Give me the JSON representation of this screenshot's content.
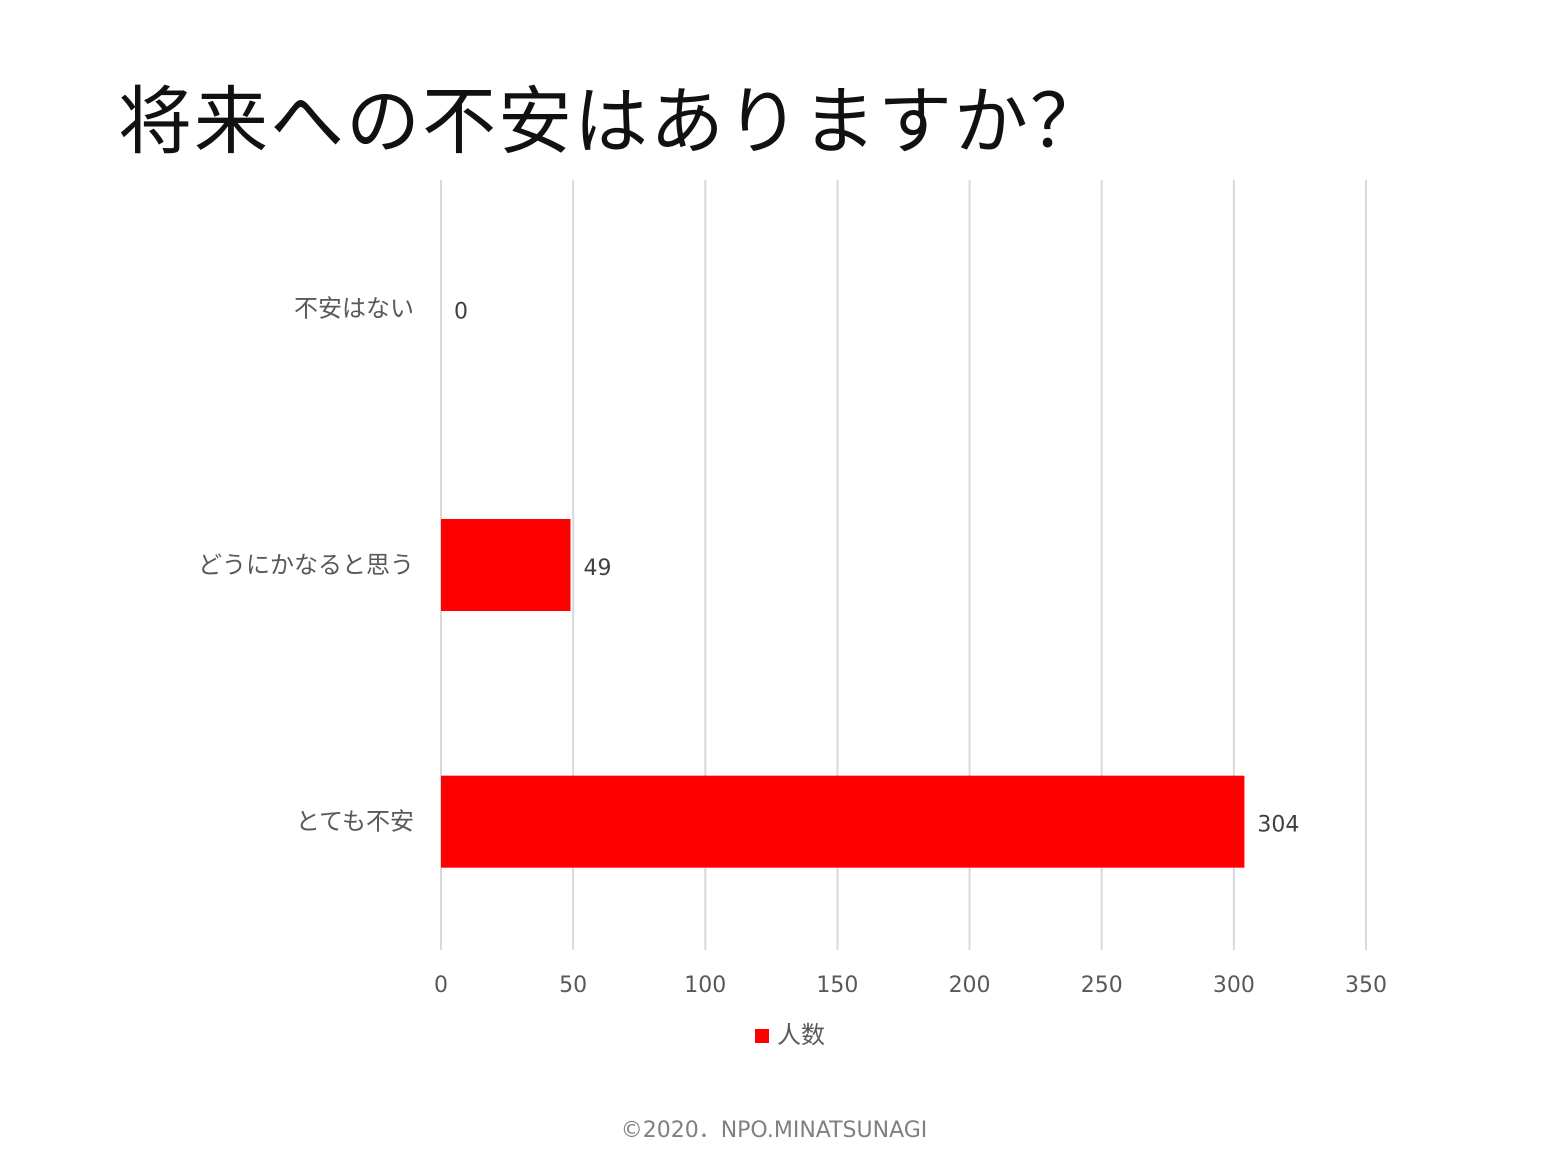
{
  "chart_data": {
    "type": "bar",
    "orientation": "horizontal",
    "title": "将来への不安はありますか？",
    "categories": [
      "不安はない",
      "どうにかなると思う",
      "とても不安"
    ],
    "series": [
      {
        "name": "人数",
        "values": [
          0,
          49,
          304
        ],
        "color": "#ff0000"
      }
    ],
    "xlim": [
      0,
      350
    ],
    "xticks": [
      0,
      50,
      100,
      150,
      200,
      250,
      300,
      350
    ],
    "grid": "vertical",
    "legend": "bottom"
  },
  "footer": "©2020．NPO.MINATSUNAGI"
}
